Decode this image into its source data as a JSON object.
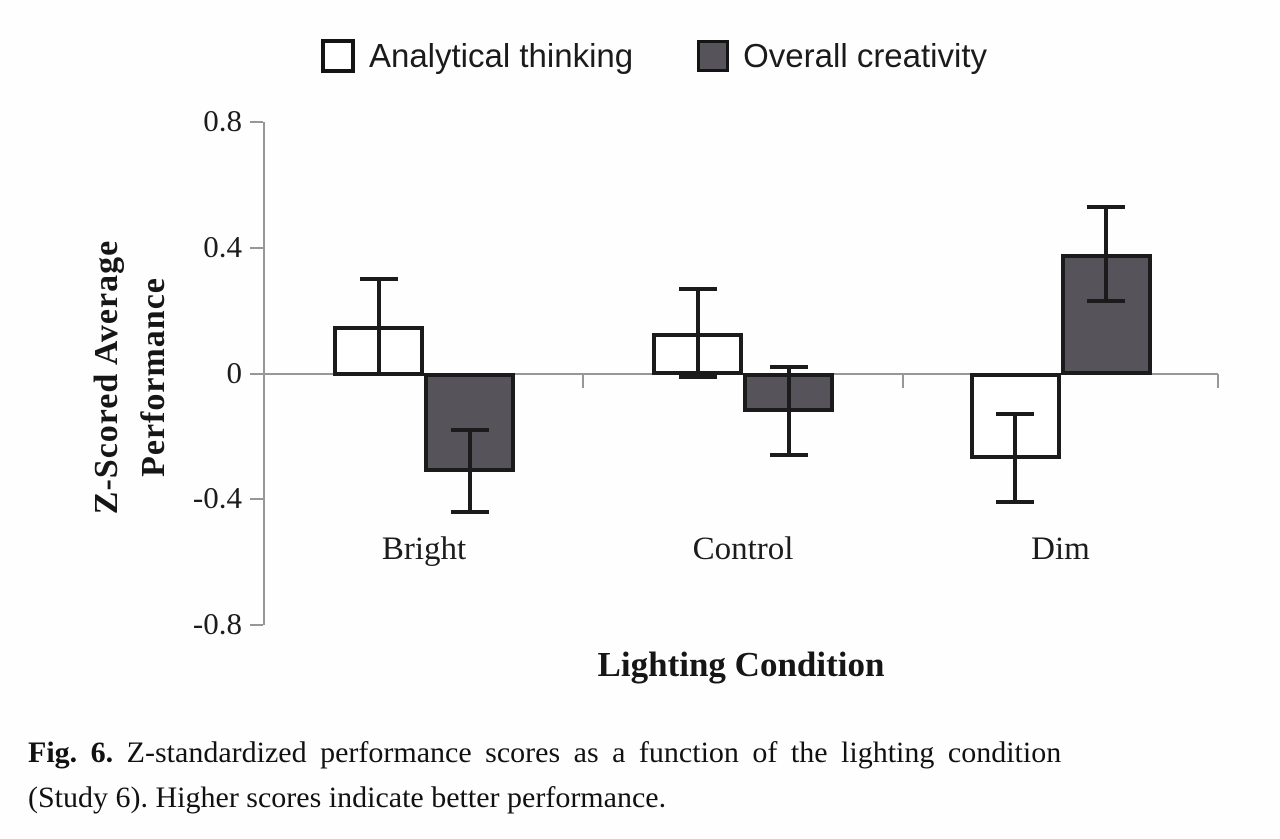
{
  "legend": {
    "items": [
      {
        "label": "Analytical thinking",
        "swatch": "white"
      },
      {
        "label": "Overall creativity",
        "swatch": "dark"
      }
    ]
  },
  "chart_data": {
    "type": "bar",
    "categories": [
      "Bright",
      "Control",
      "Dim"
    ],
    "series": [
      {
        "name": "Analytical thinking",
        "fill": "#ffffff",
        "values": [
          0.15,
          0.13,
          -0.27
        ],
        "errors": [
          0.15,
          0.14,
          0.14
        ]
      },
      {
        "name": "Overall creativity",
        "fill": "#57535a",
        "values": [
          -0.31,
          -0.12,
          0.38
        ],
        "errors": [
          0.13,
          0.14,
          0.15
        ]
      }
    ],
    "title": "",
    "xlabel": "Lighting Condition",
    "ylabel": "Z-Scored Average Performance",
    "ylim": [
      -0.8,
      0.8
    ],
    "yticks": [
      0.8,
      0.4,
      0,
      -0.4,
      -0.8
    ],
    "ytick_labels": [
      "0.8",
      "0.4",
      "0",
      "-0.4",
      "-0.8"
    ],
    "grid": false,
    "legend_position": "top",
    "error_bars": true
  },
  "axis": {
    "ylabel_line1": "Z-Scored Average",
    "ylabel_line2": "Performance",
    "xlabel": "Lighting Condition"
  },
  "caption": {
    "label": "Fig. 6.",
    "line1_rest": "Z-standardized performance scores as a function of the lighting condition",
    "line2": "(Study 6). Higher scores indicate better performance."
  },
  "colors": {
    "dark_fill": "#57535a",
    "bar_border": "#1b1b1b",
    "axis_gray": "#979797",
    "background": "#fefefe"
  }
}
